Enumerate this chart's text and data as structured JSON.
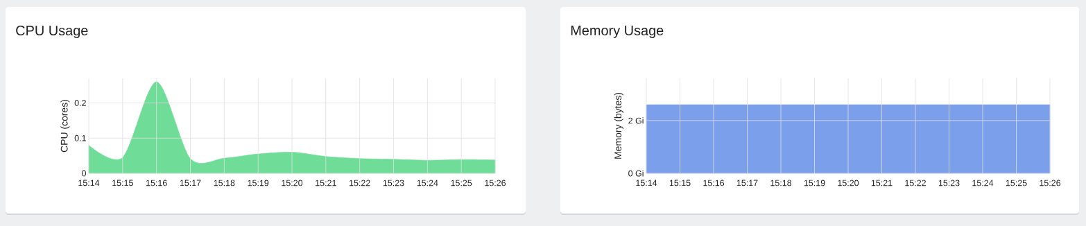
{
  "chart_data": [
    {
      "type": "area",
      "title": "CPU Usage",
      "ylabel": "CPU (cores)",
      "categories": [
        "15:14",
        "15:15",
        "15:16",
        "15:17",
        "15:18",
        "15:19",
        "15:20",
        "15:21",
        "15:22",
        "15:23",
        "15:24",
        "15:25",
        "15:26"
      ],
      "values": [
        0.08,
        0.045,
        0.26,
        0.042,
        0.043,
        0.055,
        0.06,
        0.048,
        0.042,
        0.04,
        0.037,
        0.039,
        0.038
      ],
      "color": "#6fdc98",
      "ylim": [
        0,
        0.27
      ],
      "yticks": [
        0,
        0.1,
        0.2
      ],
      "grid": true
    },
    {
      "type": "area",
      "title": "Memory Usage",
      "ylabel": "Memory (bytes)",
      "categories": [
        "15:14",
        "15:15",
        "15:16",
        "15:17",
        "15:18",
        "15:19",
        "15:20",
        "15:21",
        "15:22",
        "15:23",
        "15:24",
        "15:25",
        "15:26"
      ],
      "values": [
        2.6,
        2.6,
        2.6,
        2.6,
        2.6,
        2.6,
        2.6,
        2.6,
        2.6,
        2.6,
        2.6,
        2.6,
        2.6
      ],
      "color": "#7c9fec",
      "ylim": [
        0,
        3.6
      ],
      "yticks": [
        {
          "value": 0,
          "label": "0 Gi"
        },
        {
          "value": 2,
          "label": "2 Gi"
        }
      ],
      "grid": true
    }
  ]
}
